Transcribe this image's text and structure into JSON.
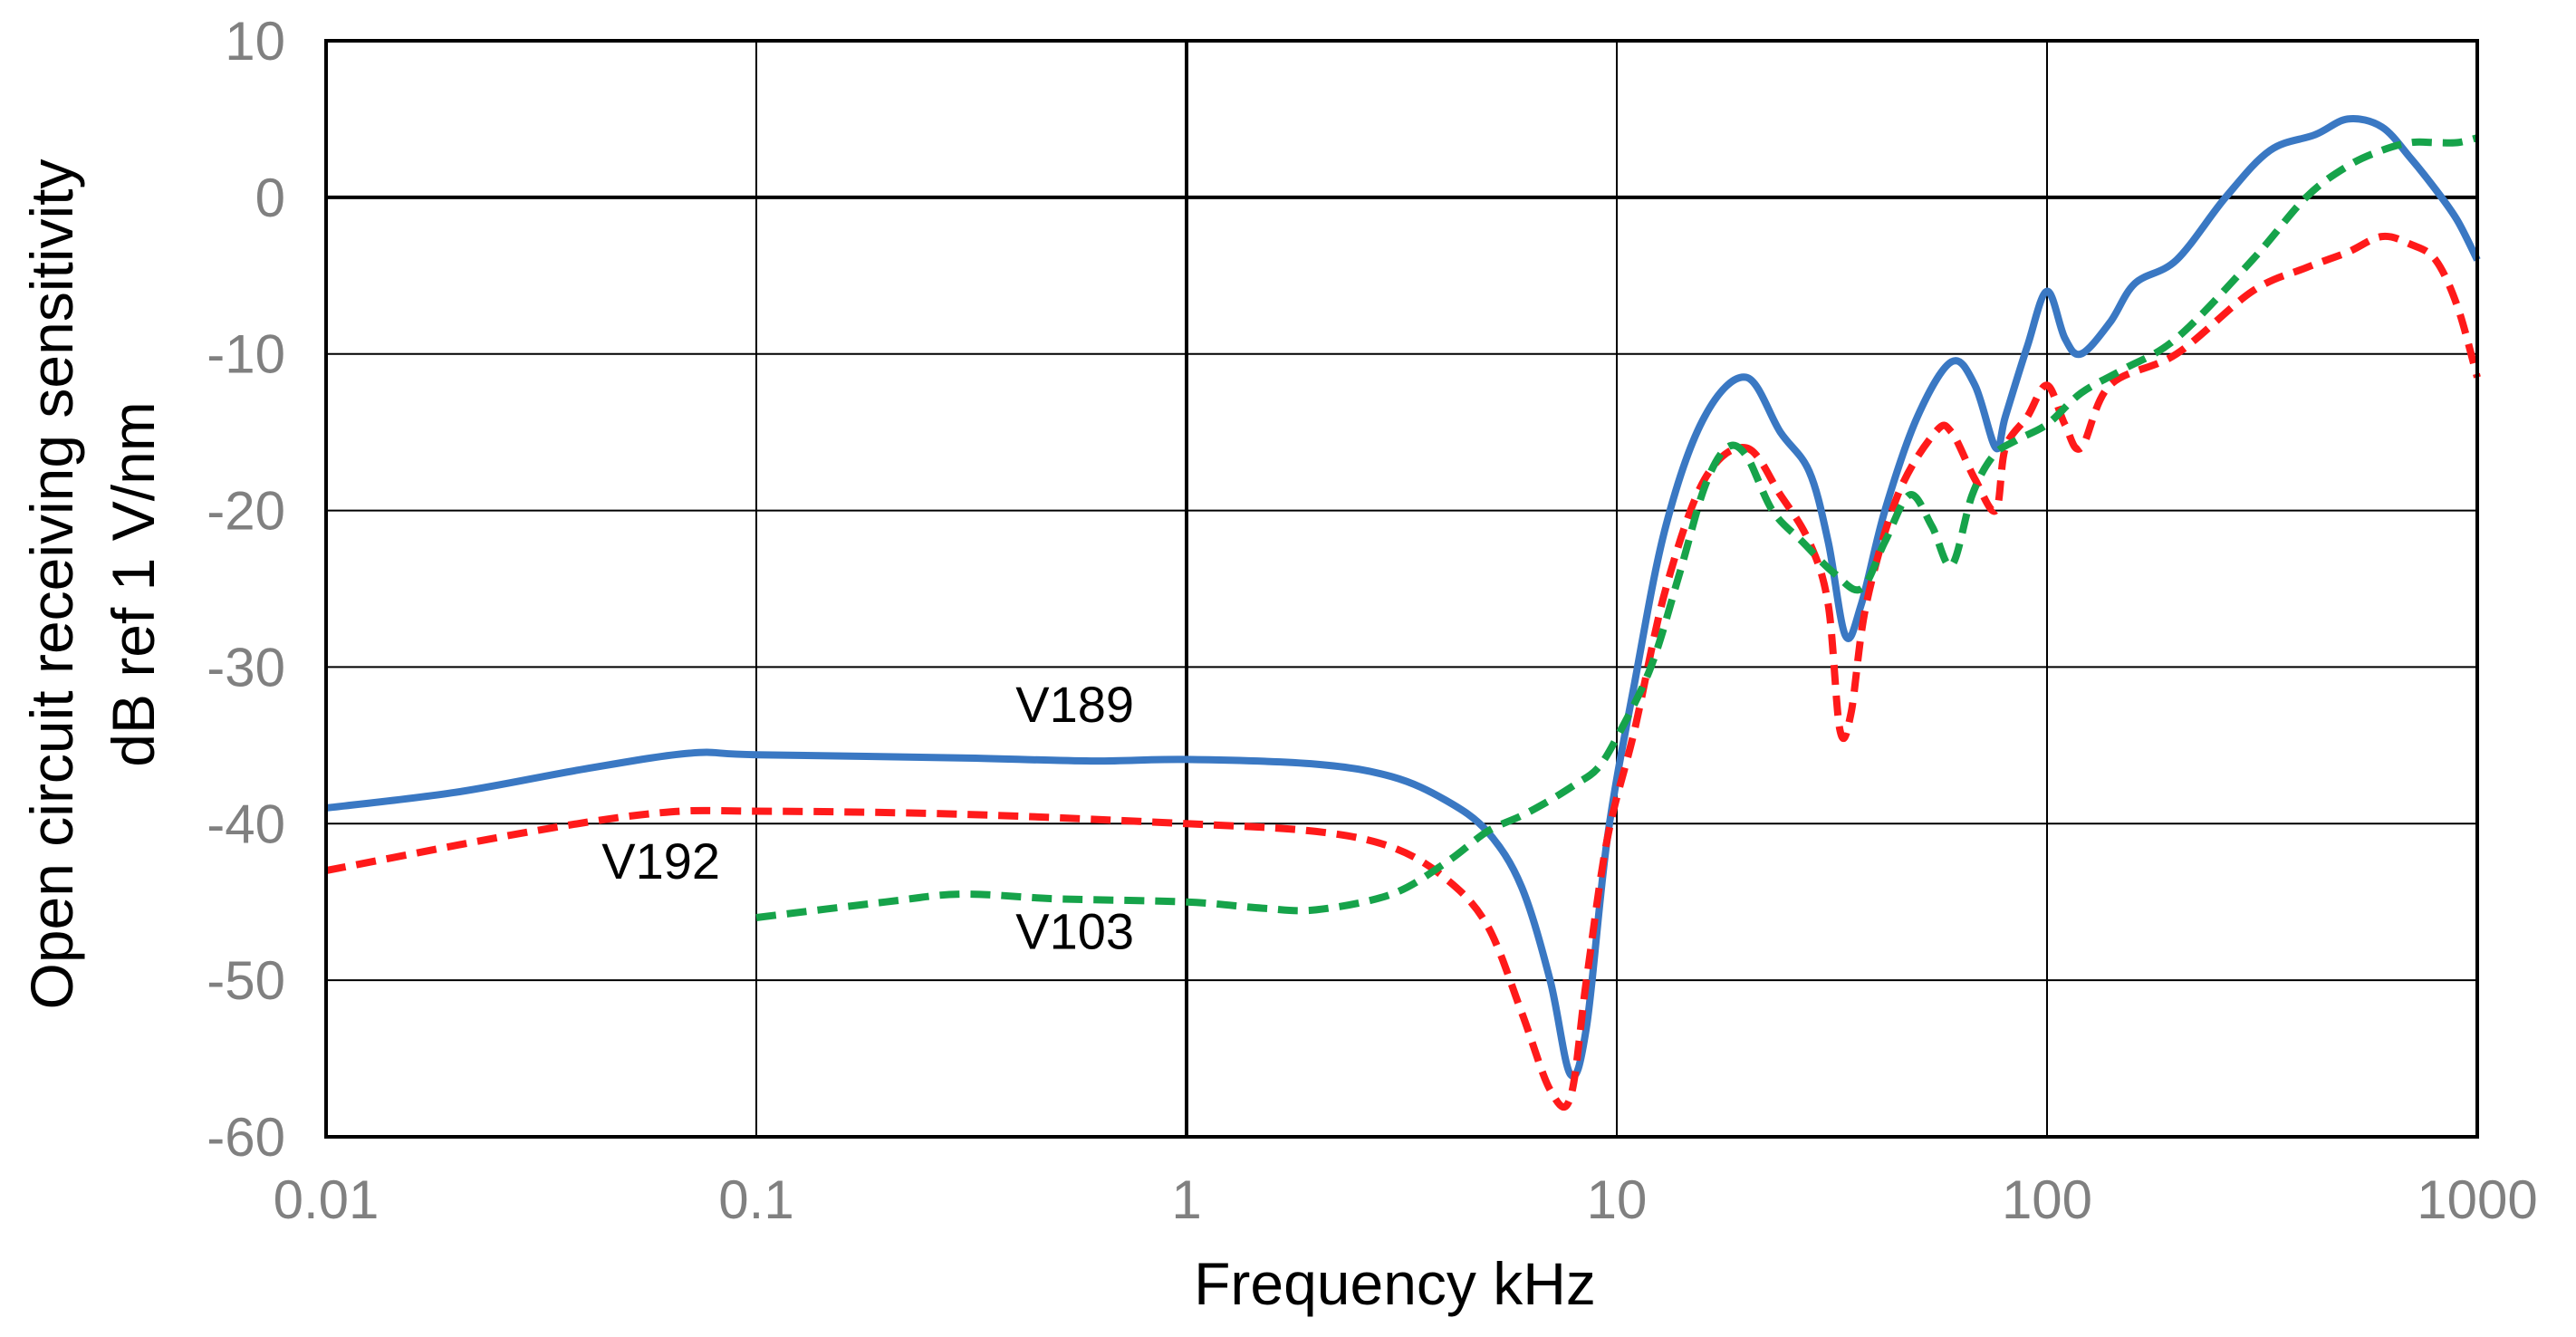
{
  "chart_data": {
    "type": "line",
    "title": "",
    "xlabel": "Frequency  kHz",
    "ylabel_line1": "Open circuit receiving sensitivity",
    "ylabel_line2": "dB ref 1 V/nm",
    "x_scale": "log",
    "xlim": [
      0.01,
      1000
    ],
    "ylim": [
      -60,
      10
    ],
    "grid": true,
    "x_ticks": [
      0.01,
      0.1,
      1,
      10,
      100,
      1000
    ],
    "x_tick_labels": [
      "0.01",
      "0.1",
      "1",
      "10",
      "100",
      "1000"
    ],
    "y_ticks": [
      10,
      0,
      -10,
      -20,
      -30,
      -40,
      -50,
      -60
    ],
    "y_tick_labels": [
      "10",
      "0",
      "-10",
      "-20",
      "-30",
      "-40",
      "-50",
      "-60"
    ],
    "series": [
      {
        "name": "V189",
        "color": "#3a78c3",
        "style": "solid",
        "x": [
          0.01,
          0.02,
          0.04,
          0.07,
          0.1,
          0.3,
          0.6,
          1,
          2,
          3,
          4,
          5,
          6,
          7,
          7.8,
          8.5,
          9.5,
          11,
          13,
          16,
          20,
          24,
          28,
          31,
          34,
          37,
          42,
          50,
          60,
          68,
          76,
          80,
          90,
          100,
          110,
          120,
          140,
          160,
          200,
          260,
          330,
          420,
          500,
          600,
          700,
          800,
          900,
          1000
        ],
        "values": [
          -39,
          -38,
          -36.5,
          -35.5,
          -35.6,
          -35.8,
          -36,
          -35.9,
          -36.2,
          -37,
          -38.5,
          -40.5,
          -44,
          -50,
          -56,
          -53,
          -41,
          -31,
          -21,
          -14,
          -11.5,
          -15,
          -17.5,
          -22,
          -28,
          -26,
          -20,
          -14,
          -10.5,
          -12,
          -16,
          -14,
          -9.5,
          -6,
          -9,
          -10,
          -8,
          -5.5,
          -4,
          0,
          3,
          4,
          5,
          4.5,
          2.5,
          0.5,
          -1.5,
          -4
        ]
      },
      {
        "name": "V192",
        "color": "#ff1a1a",
        "style": "dashed",
        "x": [
          0.01,
          0.03,
          0.06,
          0.1,
          0.3,
          1,
          2,
          3,
          4,
          5,
          6,
          7,
          7.8,
          8.5,
          9.5,
          11,
          13,
          16,
          20,
          24,
          28,
          31,
          33,
          35,
          38,
          45,
          55,
          60,
          68,
          76,
          80,
          90,
          100,
          110,
          120,
          140,
          200,
          300,
          400,
          500,
          600,
          700,
          800,
          900,
          1000
        ],
        "values": [
          -43,
          -40.5,
          -39.3,
          -39.2,
          -39.4,
          -40,
          -40.5,
          -41.5,
          -43.5,
          -46.5,
          -52,
          -57,
          -57.5,
          -50,
          -41,
          -34,
          -25,
          -18,
          -16,
          -19,
          -22,
          -26,
          -34,
          -33,
          -26,
          -19,
          -15,
          -15,
          -18,
          -20,
          -16,
          -14,
          -12,
          -14.5,
          -16,
          -12,
          -10,
          -6,
          -4.5,
          -3.5,
          -2.5,
          -3,
          -4,
          -7,
          -11.5
        ]
      },
      {
        "name": "V103",
        "color": "#16a34a",
        "style": "dashed",
        "x": [
          0.1,
          0.2,
          0.3,
          0.5,
          1,
          1.5,
          2,
          3,
          4,
          5,
          6,
          7,
          8,
          9,
          10,
          12,
          14,
          16,
          18,
          20,
          23,
          27,
          32,
          37,
          42,
          48,
          54,
          60,
          67,
          75,
          85,
          100,
          120,
          150,
          200,
          300,
          400,
          500,
          600,
          700,
          800,
          900,
          1000
        ],
        "values": [
          -46,
          -45,
          -44.5,
          -44.8,
          -45,
          -45.4,
          -45.5,
          -44.5,
          -42.5,
          -40.5,
          -39.5,
          -38.5,
          -37.5,
          -36.5,
          -34.5,
          -30,
          -24,
          -18.5,
          -16,
          -16.5,
          -20,
          -22,
          -24,
          -25,
          -22,
          -19,
          -21,
          -23.5,
          -19,
          -16.5,
          -15.5,
          -14.5,
          -12.5,
          -11,
          -9,
          -4,
          0,
          2,
          3,
          3.5,
          3.5,
          3.5,
          3.8
        ]
      }
    ],
    "annotations": [
      {
        "text": "V189",
        "series": "V189",
        "x": 0.55,
        "y": -33.5
      },
      {
        "text": "V192",
        "series": "V192",
        "x": 0.06,
        "y": -43.5
      },
      {
        "text": "V103",
        "series": "V103",
        "x": 0.55,
        "y": -48
      }
    ]
  }
}
